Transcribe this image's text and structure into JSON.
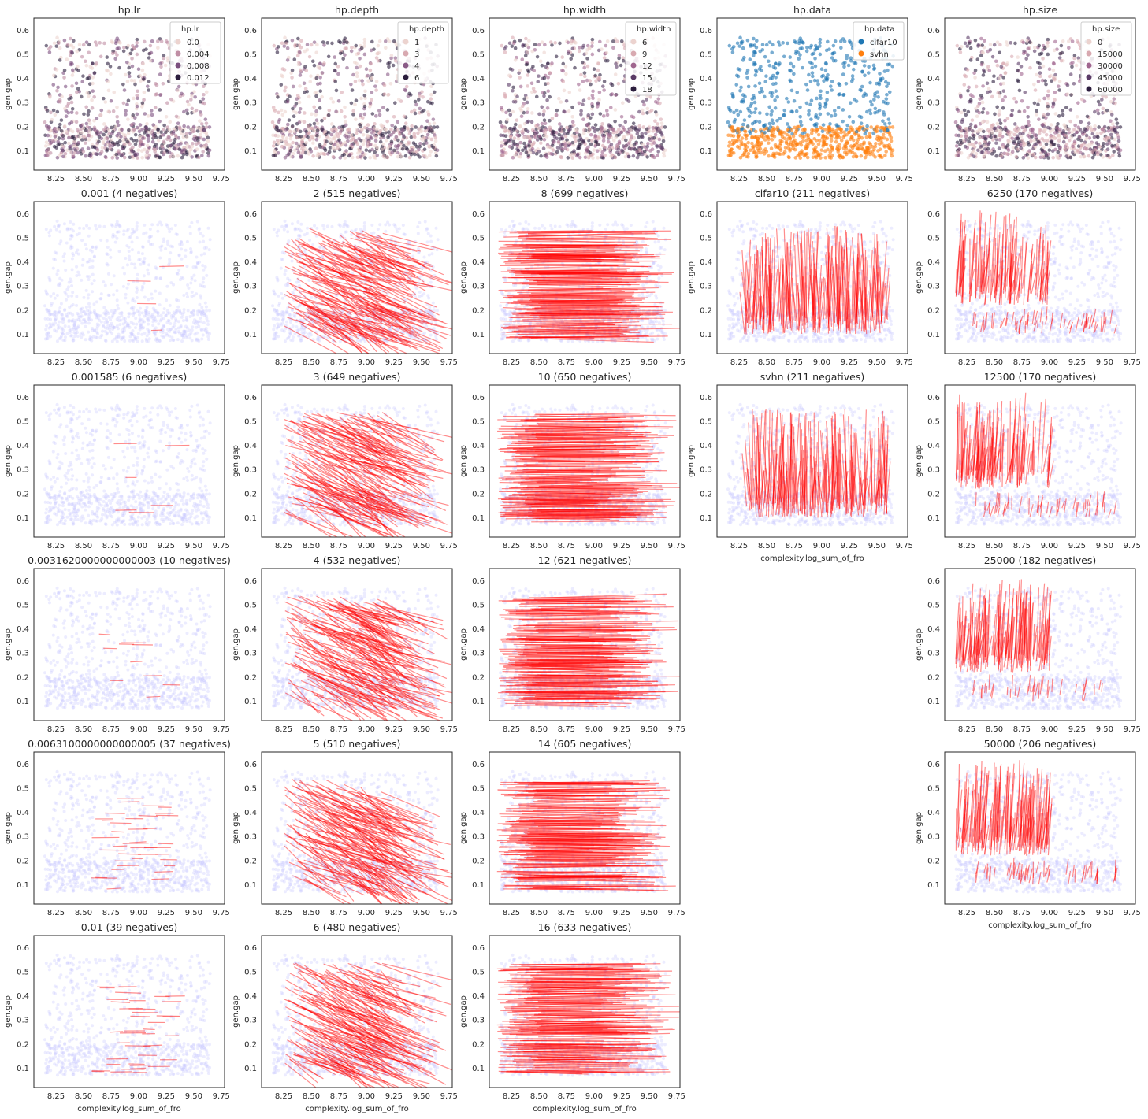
{
  "figure": {
    "x_axis_label": "complexity.log_sum_of_fro",
    "y_axis_label": "gen.gap"
  },
  "chart_data": [
    {
      "type": "scatter",
      "panel": "hp.lr",
      "title": "hp.lr",
      "hue": "hp.lr",
      "legend": {
        "title": "hp.lr",
        "placement": "top-right",
        "entries": [
          {
            "label": "0.0",
            "color": "#ecd3cf"
          },
          {
            "label": "0.004",
            "color": "#c08ea4"
          },
          {
            "label": "0.008",
            "color": "#7b4f7e"
          },
          {
            "label": "0.012",
            "color": "#2c1e3e"
          }
        ]
      },
      "xlim": [
        8.05,
        9.78
      ],
      "ylim": [
        0.02,
        0.65
      ]
    },
    {
      "type": "scatter",
      "panel": "hp.depth",
      "title": "hp.depth",
      "hue": "hp.depth",
      "legend": {
        "title": "hp.depth",
        "placement": "top-right",
        "entries": [
          {
            "label": "1",
            "color": "#ecd3cf"
          },
          {
            "label": "3",
            "color": "#d8a9b0"
          },
          {
            "label": "4",
            "color": "#8a5b87"
          },
          {
            "label": "6",
            "color": "#2c1e3e"
          }
        ]
      },
      "xlim": [
        8.05,
        9.78
      ],
      "ylim": [
        0.02,
        0.65
      ]
    },
    {
      "type": "scatter",
      "panel": "hp.width",
      "title": "hp.width",
      "hue": "hp.width",
      "legend": {
        "title": "hp.width",
        "placement": "top-right",
        "entries": [
          {
            "label": "6",
            "color": "#ecd3cf"
          },
          {
            "label": "9",
            "color": "#d8a9b0"
          },
          {
            "label": "12",
            "color": "#a0668f"
          },
          {
            "label": "15",
            "color": "#5a3a66"
          },
          {
            "label": "18",
            "color": "#2c1e3e"
          }
        ]
      },
      "xlim": [
        8.05,
        9.78
      ],
      "ylim": [
        0.02,
        0.65
      ]
    },
    {
      "type": "scatter",
      "panel": "hp.data",
      "title": "hp.data",
      "hue": "hp.data",
      "legend": {
        "title": "hp.data",
        "placement": "top-right",
        "entries": [
          {
            "label": "cifar10",
            "color": "#1f77b4"
          },
          {
            "label": "svhn",
            "color": "#ff7f0e"
          }
        ]
      },
      "xlim": [
        8.05,
        9.78
      ],
      "ylim": [
        0.02,
        0.65
      ]
    },
    {
      "type": "scatter",
      "panel": "hp.size",
      "title": "hp.size",
      "hue": "hp.size",
      "legend": {
        "title": "hp.size",
        "placement": "top-right",
        "entries": [
          {
            "label": "0",
            "color": "#ecd3cf"
          },
          {
            "label": "15000",
            "color": "#d8a9b0"
          },
          {
            "label": "30000",
            "color": "#a0668f"
          },
          {
            "label": "45000",
            "color": "#5a3a66"
          },
          {
            "label": "60000",
            "color": "#2c1e3e"
          }
        ]
      },
      "xlim": [
        8.05,
        9.78
      ],
      "ylim": [
        0.02,
        0.65
      ]
    },
    {
      "type": "line",
      "panel": "lr-1",
      "column": "hp.lr",
      "title": "0.001 (4 negatives)",
      "value": "0.001",
      "negatives": 4,
      "xlim": [
        8.05,
        9.78
      ],
      "ylim": [
        0.02,
        0.65
      ]
    },
    {
      "type": "line",
      "panel": "lr-2",
      "column": "hp.lr",
      "title": "0.001585 (6 negatives)",
      "value": "0.001585",
      "negatives": 6,
      "xlim": [
        8.05,
        9.78
      ],
      "ylim": [
        0.02,
        0.65
      ]
    },
    {
      "type": "line",
      "panel": "lr-3",
      "column": "hp.lr",
      "title": "0.0031620000000000003 (10 negatives)",
      "value": "0.0031620000000000003",
      "negatives": 10,
      "xlim": [
        8.05,
        9.78
      ],
      "ylim": [
        0.02,
        0.65
      ]
    },
    {
      "type": "line",
      "panel": "lr-4",
      "column": "hp.lr",
      "title": "0.0063100000000000005 (37 negatives)",
      "value": "0.0063100000000000005",
      "negatives": 37,
      "xlim": [
        8.05,
        9.78
      ],
      "ylim": [
        0.02,
        0.65
      ]
    },
    {
      "type": "line",
      "panel": "lr-5",
      "column": "hp.lr",
      "title": "0.01 (39 negatives)",
      "value": "0.01",
      "negatives": 39,
      "xlim": [
        8.05,
        9.78
      ],
      "ylim": [
        0.02,
        0.65
      ]
    },
    {
      "type": "line",
      "panel": "depth-1",
      "column": "hp.depth",
      "title": "2 (515 negatives)",
      "value": "2",
      "negatives": 515,
      "xlim": [
        8.05,
        9.78
      ],
      "ylim": [
        0.02,
        0.65
      ]
    },
    {
      "type": "line",
      "panel": "depth-2",
      "column": "hp.depth",
      "title": "3 (649 negatives)",
      "value": "3",
      "negatives": 649,
      "xlim": [
        8.05,
        9.78
      ],
      "ylim": [
        0.02,
        0.65
      ]
    },
    {
      "type": "line",
      "panel": "depth-3",
      "column": "hp.depth",
      "title": "4 (532 negatives)",
      "value": "4",
      "negatives": 532,
      "xlim": [
        8.05,
        9.78
      ],
      "ylim": [
        0.02,
        0.65
      ]
    },
    {
      "type": "line",
      "panel": "depth-4",
      "column": "hp.depth",
      "title": "5 (510 negatives)",
      "value": "5",
      "negatives": 510,
      "xlim": [
        8.05,
        9.78
      ],
      "ylim": [
        0.02,
        0.65
      ]
    },
    {
      "type": "line",
      "panel": "depth-5",
      "column": "hp.depth",
      "title": "6 (480 negatives)",
      "value": "6",
      "negatives": 480,
      "xlim": [
        8.05,
        9.78
      ],
      "ylim": [
        0.02,
        0.65
      ]
    },
    {
      "type": "line",
      "panel": "width-1",
      "column": "hp.width",
      "title": "8 (699 negatives)",
      "value": "8",
      "negatives": 699,
      "xlim": [
        8.05,
        9.78
      ],
      "ylim": [
        0.02,
        0.65
      ]
    },
    {
      "type": "line",
      "panel": "width-2",
      "column": "hp.width",
      "title": "10 (650 negatives)",
      "value": "10",
      "negatives": 650,
      "xlim": [
        8.05,
        9.78
      ],
      "ylim": [
        0.02,
        0.65
      ]
    },
    {
      "type": "line",
      "panel": "width-3",
      "column": "hp.width",
      "title": "12 (621 negatives)",
      "value": "12",
      "negatives": 621,
      "xlim": [
        8.05,
        9.78
      ],
      "ylim": [
        0.02,
        0.65
      ]
    },
    {
      "type": "line",
      "panel": "width-4",
      "column": "hp.width",
      "title": "14 (605 negatives)",
      "value": "14",
      "negatives": 605,
      "xlim": [
        8.05,
        9.78
      ],
      "ylim": [
        0.02,
        0.65
      ]
    },
    {
      "type": "line",
      "panel": "width-5",
      "column": "hp.width",
      "title": "16 (633 negatives)",
      "value": "16",
      "negatives": 633,
      "xlim": [
        8.05,
        9.78
      ],
      "ylim": [
        0.02,
        0.65
      ]
    },
    {
      "type": "line",
      "panel": "data-1",
      "column": "hp.data",
      "title": "cifar10 (211 negatives)",
      "value": "cifar10",
      "negatives": 211,
      "xlim": [
        8.05,
        9.78
      ],
      "ylim": [
        0.02,
        0.65
      ]
    },
    {
      "type": "line",
      "panel": "data-2",
      "column": "hp.data",
      "title": "svhn (211 negatives)",
      "value": "svhn",
      "negatives": 211,
      "xlim": [
        8.05,
        9.78
      ],
      "ylim": [
        0.02,
        0.65
      ]
    },
    {
      "type": "line",
      "panel": "size-1",
      "column": "hp.size",
      "title": "6250 (170 negatives)",
      "value": "6250",
      "negatives": 170,
      "xlim": [
        8.05,
        9.78
      ],
      "ylim": [
        0.02,
        0.65
      ]
    },
    {
      "type": "line",
      "panel": "size-2",
      "column": "hp.size",
      "title": "12500 (170 negatives)",
      "value": "12500",
      "negatives": 170,
      "xlim": [
        8.05,
        9.78
      ],
      "ylim": [
        0.02,
        0.65
      ]
    },
    {
      "type": "line",
      "panel": "size-3",
      "column": "hp.size",
      "title": "25000 (182 negatives)",
      "value": "25000",
      "negatives": 182,
      "xlim": [
        8.05,
        9.78
      ],
      "ylim": [
        0.02,
        0.65
      ]
    },
    {
      "type": "line",
      "panel": "size-4",
      "column": "hp.size",
      "title": "50000 (206 negatives)",
      "value": "50000",
      "negatives": 206,
      "xlim": [
        8.05,
        9.78
      ],
      "ylim": [
        0.02,
        0.65
      ]
    }
  ],
  "axes": {
    "x_ticks": [
      "8.25",
      "8.50",
      "8.75",
      "9.00",
      "9.25",
      "9.50",
      "9.75"
    ],
    "y_ticks": [
      "0.1",
      "0.2",
      "0.3",
      "0.4",
      "0.5",
      "0.6"
    ]
  },
  "colors": {
    "negative_line": "#ff0000",
    "background_points": "#c8c8ff",
    "axis": "#262626"
  }
}
